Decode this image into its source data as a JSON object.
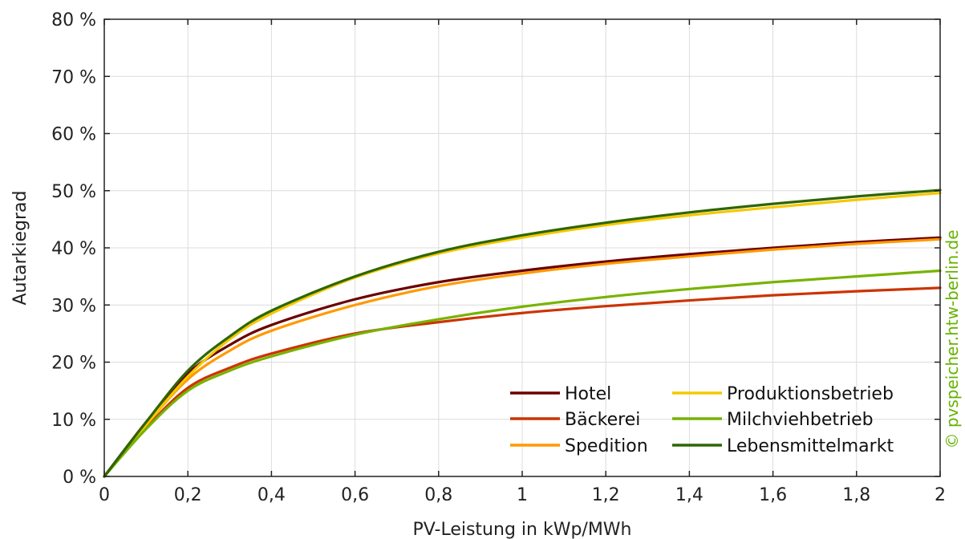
{
  "chart_data": {
    "type": "line",
    "title": "",
    "xlabel": "PV-Leistung in kWp/MWh",
    "ylabel": "Autarkiegrad",
    "xlim": [
      0,
      2
    ],
    "ylim": [
      0,
      80
    ],
    "x_ticks": [
      0,
      0.2,
      0.4,
      0.6,
      0.8,
      1,
      1.2,
      1.4,
      1.6,
      1.8,
      2
    ],
    "x_tick_labels": [
      "0",
      "0,2",
      "0,4",
      "0,6",
      "0,8",
      "1",
      "1,2",
      "1,4",
      "1,6",
      "1,8",
      "2"
    ],
    "y_ticks": [
      0,
      10,
      20,
      30,
      40,
      50,
      60,
      70,
      80
    ],
    "y_tick_labels": [
      "0 %",
      "10 %",
      "20 %",
      "30 %",
      "40 %",
      "50 %",
      "60 %",
      "70 %",
      "80 %"
    ],
    "grid": true,
    "legend_position": "bottom-right",
    "x": [
      0,
      0.1,
      0.2,
      0.3,
      0.4,
      0.6,
      0.8,
      1.0,
      1.2,
      1.4,
      1.6,
      1.8,
      2.0
    ],
    "series": [
      {
        "name": "Hotel",
        "color": "#6b0000",
        "values": [
          0,
          9.5,
          18.0,
          23.0,
          26.5,
          31.0,
          34.0,
          36.0,
          37.6,
          38.9,
          40.0,
          41.0,
          41.8
        ]
      },
      {
        "name": "Bäckerei",
        "color": "#cc3300",
        "values": [
          0,
          8.5,
          15.5,
          19.0,
          21.5,
          25.0,
          27.0,
          28.6,
          29.8,
          30.8,
          31.7,
          32.4,
          33.0
        ]
      },
      {
        "name": "Spedition",
        "color": "#ff9900",
        "values": [
          0,
          9.0,
          17.0,
          22.0,
          25.5,
          30.0,
          33.3,
          35.5,
          37.2,
          38.5,
          39.7,
          40.7,
          41.5
        ]
      },
      {
        "name": "Produktionsbetrieb",
        "color": "#f5c800",
        "values": [
          0,
          9.0,
          17.5,
          24.0,
          28.5,
          34.8,
          39.0,
          41.8,
          44.0,
          45.7,
          47.1,
          48.4,
          49.6
        ]
      },
      {
        "name": "Milchviehbetrieb",
        "color": "#77b300",
        "values": [
          0,
          8.3,
          15.0,
          18.5,
          21.0,
          24.8,
          27.5,
          29.7,
          31.4,
          32.8,
          34.0,
          35.0,
          36.0
        ]
      },
      {
        "name": "Lebensmittelmarkt",
        "color": "#2e6600",
        "values": [
          0,
          9.5,
          18.5,
          24.5,
          29.0,
          35.0,
          39.3,
          42.2,
          44.4,
          46.2,
          47.7,
          49.0,
          50.1
        ]
      }
    ]
  },
  "watermark": {
    "text": "© pvspeicher.htw-berlin.de",
    "color": "#66b300"
  }
}
